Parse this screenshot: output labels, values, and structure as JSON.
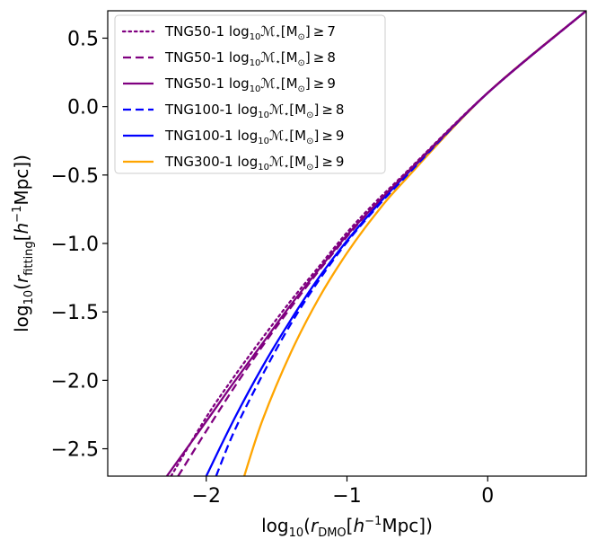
{
  "chart_data": {
    "type": "line",
    "title": "",
    "xlabel": "log$_{10}$($r_{\\rm DMO}$[$h^{-1}$Mpc])",
    "ylabel": "log$_{10}$($r_{\\rm fitting}$[$h^{-1}$Mpc])",
    "xlim": [
      -2.7,
      0.7
    ],
    "ylim": [
      -2.7,
      0.7
    ],
    "xticks": [
      -2,
      -1,
      0
    ],
    "xtick_labels": [
      "−2",
      "−1",
      "0"
    ],
    "yticks": [
      -2.5,
      -2.0,
      -1.5,
      -1.0,
      -0.5,
      0.0,
      0.5
    ],
    "ytick_labels": [
      "−2.5",
      "−2.0",
      "−1.5",
      "−1.0",
      "−0.5",
      "0.0",
      "0.5"
    ],
    "grid": false,
    "legend_position": "upper left",
    "series": [
      {
        "name": "TNG50-1 log$_{10}$$\\mathcal{M}_\\star$[M$_\\odot$]$\\geq$7",
        "color": "#800080",
        "linestyle": "dotted",
        "x": [
          -2.25,
          -2.0,
          -1.8,
          -1.6,
          -1.4,
          -1.2,
          -1.0,
          -0.8,
          -0.6,
          0.0,
          0.7
        ],
        "y": [
          -2.7,
          -2.27,
          -1.97,
          -1.69,
          -1.42,
          -1.17,
          -0.92,
          -0.7,
          -0.5,
          0.1,
          0.7
        ]
      },
      {
        "name": "TNG50-1 log$_{10}$$\\mathcal{M}_\\star$[M$_\\odot$]$\\geq$8",
        "color": "#800080",
        "linestyle": "dashed",
        "x": [
          -2.2,
          -2.0,
          -1.8,
          -1.6,
          -1.4,
          -1.2,
          -1.0,
          -0.8,
          -0.6,
          0.0,
          0.7
        ],
        "y": [
          -2.7,
          -2.37,
          -2.05,
          -1.75,
          -1.47,
          -1.2,
          -0.95,
          -0.72,
          -0.51,
          0.1,
          0.7
        ]
      },
      {
        "name": "TNG50-1 log$_{10}$$\\mathcal{M}_\\star$[M$_\\odot$]$\\geq$9",
        "color": "#800080",
        "linestyle": "solid",
        "x": [
          -2.28,
          -2.0,
          -1.8,
          -1.6,
          -1.4,
          -1.2,
          -1.0,
          -0.8,
          -0.6,
          0.0,
          0.7
        ],
        "y": [
          -2.7,
          -2.3,
          -2.01,
          -1.73,
          -1.45,
          -1.19,
          -0.94,
          -0.72,
          -0.51,
          0.1,
          0.7
        ]
      },
      {
        "name": "TNG100-1 log$_{10}$$\\mathcal{M}_\\star$[M$_\\odot$]$\\geq$8",
        "color": "#0000ff",
        "linestyle": "dashed",
        "x": [
          -1.93,
          -1.8,
          -1.6,
          -1.4,
          -1.2,
          -1.0,
          -0.8,
          -0.6,
          0.0,
          0.7
        ],
        "y": [
          -2.7,
          -2.37,
          -1.96,
          -1.59,
          -1.27,
          -0.99,
          -0.75,
          -0.53,
          0.1,
          0.7
        ]
      },
      {
        "name": "TNG100-1 log$_{10}$$\\mathcal{M}_\\star$[M$_\\odot$]$\\geq$9",
        "color": "#0000ff",
        "linestyle": "solid",
        "x": [
          -2.0,
          -1.8,
          -1.6,
          -1.4,
          -1.2,
          -1.0,
          -0.8,
          -0.6,
          0.0,
          0.7
        ],
        "y": [
          -2.7,
          -2.28,
          -1.9,
          -1.56,
          -1.25,
          -0.98,
          -0.74,
          -0.52,
          0.1,
          0.7
        ]
      },
      {
        "name": "TNG300-1 log$_{10}$$\\mathcal{M}_\\star$[M$_\\odot$]$\\geq$9",
        "color": "#ffa500",
        "linestyle": "solid",
        "x": [
          -1.73,
          -1.6,
          -1.4,
          -1.2,
          -1.0,
          -0.8,
          -0.6,
          0.0,
          0.7
        ],
        "y": [
          -2.7,
          -2.29,
          -1.8,
          -1.4,
          -1.07,
          -0.79,
          -0.55,
          0.1,
          0.7
        ]
      }
    ]
  }
}
